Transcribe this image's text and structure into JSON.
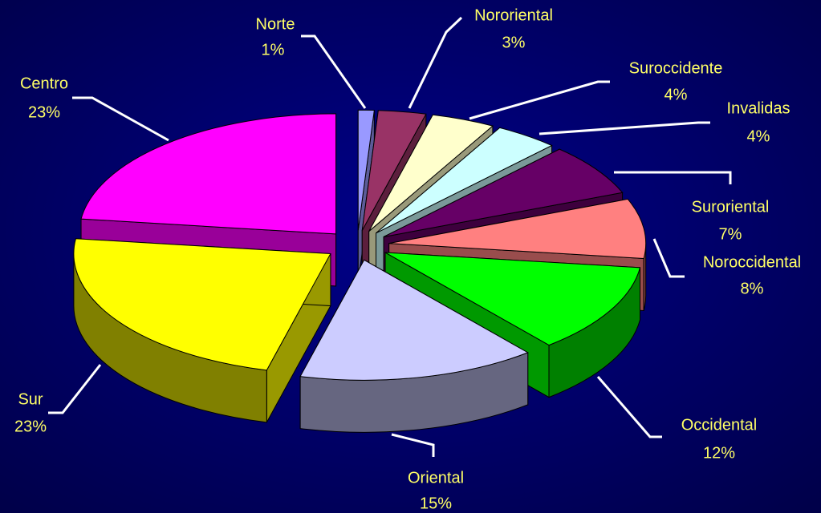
{
  "chart_data": {
    "type": "pie",
    "categories": [
      "Norte",
      "Nororiental",
      "Suroccidente",
      "Invalidas",
      "Suroriental",
      "Noroccidental",
      "Occidental",
      "Oriental",
      "Sur",
      "Centro"
    ],
    "values": [
      1,
      3,
      4,
      4,
      7,
      8,
      12,
      15,
      23,
      23
    ],
    "value_labels": [
      "1%",
      "3%",
      "4%",
      "4%",
      "7%",
      "8%",
      "12%",
      "15%",
      "23%",
      "23%"
    ],
    "colors": [
      "#9999ff",
      "#993366",
      "#ffffcc",
      "#ccffff",
      "#660066",
      "#ff8080",
      "#00ff00",
      "#ccccff",
      "#ffff00",
      "#ff00ff"
    ]
  }
}
